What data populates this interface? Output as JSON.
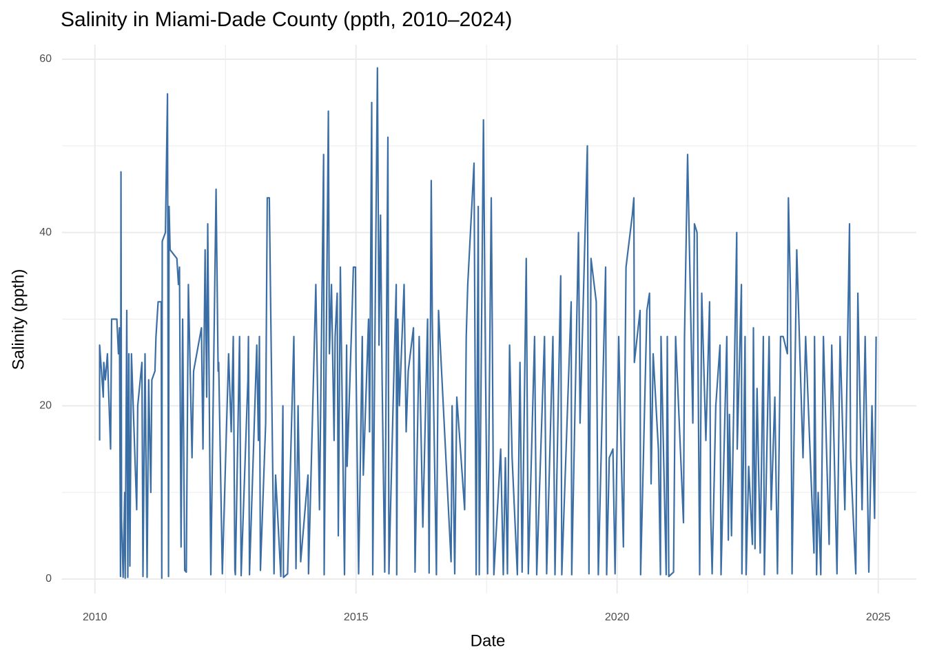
{
  "chart_data": {
    "type": "line",
    "title": "Salinity in Miami-Dade County (ppth, 2010–2024)",
    "x_label": "Date",
    "y_label": "Salinity (ppth)",
    "x": [
      2010.09,
      2010.09,
      2010.16,
      2010.17,
      2010.2,
      2010.24,
      2010.26,
      2010.3,
      2010.32,
      2010.42,
      2010.45,
      2010.47,
      2010.49,
      2010.5,
      2010.51,
      2010.54,
      2010.57,
      2010.58,
      2010.61,
      2010.63,
      2010.65,
      2010.67,
      2010.7,
      2010.8,
      2010.82,
      2010.9,
      2010.92,
      2010.96,
      2011.0,
      2011.03,
      2011.07,
      2011.09,
      2011.15,
      2011.17,
      2011.21,
      2011.27,
      2011.28,
      2011.29,
      2011.35,
      2011.39,
      2011.41,
      2011.42,
      2011.44,
      2011.57,
      2011.6,
      2011.62,
      2011.65,
      2011.68,
      2011.72,
      2011.75,
      2011.79,
      2011.86,
      2011.89,
      2012.04,
      2012.07,
      2012.11,
      2012.14,
      2012.16,
      2012.22,
      2012.32,
      2012.36,
      2012.37,
      2012.44,
      2012.56,
      2012.61,
      2012.65,
      2012.68,
      2012.69,
      2012.77,
      2012.8,
      2012.93,
      2012.94,
      2012.96,
      2013.1,
      2013.13,
      2013.15,
      2013.17,
      2013.27,
      2013.3,
      2013.34,
      2013.43,
      2013.46,
      2013.56,
      2013.6,
      2013.61,
      2013.69,
      2013.81,
      2013.85,
      2013.89,
      2013.94,
      2014.08,
      2014.09,
      2014.23,
      2014.3,
      2014.38,
      2014.39,
      2014.47,
      2014.49,
      2014.53,
      2014.58,
      2014.6,
      2014.64,
      2014.66,
      2014.7,
      2014.78,
      2014.82,
      2014.83,
      2014.92,
      2014.95,
      2014.99,
      2015.0,
      2015.05,
      2015.12,
      2015.14,
      2015.24,
      2015.26,
      2015.3,
      2015.32,
      2015.41,
      2015.44,
      2015.47,
      2015.5,
      2015.55,
      2015.61,
      2015.63,
      2015.73,
      2015.77,
      2015.78,
      2015.8,
      2015.83,
      2015.92,
      2015.96,
      2016.0,
      2016.1,
      2016.13,
      2016.21,
      2016.28,
      2016.37,
      2016.4,
      2016.44,
      2016.46,
      2016.54,
      2016.58,
      2016.82,
      2016.84,
      2016.89,
      2016.93,
      2017.08,
      2017.11,
      2017.14,
      2017.26,
      2017.3,
      2017.34,
      2017.36,
      2017.44,
      2017.48,
      2017.52,
      2017.59,
      2017.61,
      2017.64,
      2017.77,
      2017.82,
      2017.86,
      2017.9,
      2017.94,
      2017.99,
      2018.09,
      2018.14,
      2018.18,
      2018.26,
      2018.3,
      2018.42,
      2018.46,
      2018.61,
      2018.65,
      2018.77,
      2018.81,
      2018.92,
      2018.94,
      2019.12,
      2019.13,
      2019.26,
      2019.29,
      2019.43,
      2019.46,
      2019.5,
      2019.6,
      2019.64,
      2019.78,
      2019.8,
      2019.85,
      2019.92,
      2019.96,
      2020.03,
      2020.08,
      2020.12,
      2020.17,
      2020.29,
      2020.32,
      2020.33,
      2020.44,
      2020.45,
      2020.57,
      2020.62,
      2020.65,
      2020.69,
      2020.79,
      2020.83,
      2020.84,
      2020.94,
      2020.96,
      2020.99,
      2021.08,
      2021.12,
      2021.27,
      2021.29,
      2021.35,
      2021.45,
      2021.48,
      2021.53,
      2021.58,
      2021.62,
      2021.7,
      2021.77,
      2021.79,
      2021.82,
      2021.89,
      2021.97,
      2021.99,
      2022.1,
      2022.13,
      2022.15,
      2022.19,
      2022.29,
      2022.3,
      2022.38,
      2022.39,
      2022.45,
      2022.47,
      2022.52,
      2022.59,
      2022.61,
      2022.64,
      2022.68,
      2022.74,
      2022.8,
      2022.82,
      2022.91,
      2022.95,
      2023.02,
      2023.07,
      2023.13,
      2023.18,
      2023.26,
      2023.28,
      2023.32,
      2023.35,
      2023.44,
      2023.56,
      2023.61,
      2023.77,
      2023.78,
      2023.82,
      2023.85,
      2023.9,
      2023.95,
      2024.06,
      2024.11,
      2024.21,
      2024.27,
      2024.36,
      2024.45,
      2024.47,
      2024.57,
      2024.61,
      2024.69,
      2024.75,
      2024.82,
      2024.88,
      2024.93,
      2024.96
    ],
    "series": [
      {
        "name": "Salinity",
        "color": "#3b6ea5",
        "values": [
          16,
          27,
          21,
          25,
          23,
          26,
          22,
          15,
          30,
          30,
          26,
          29,
          0.3,
          47,
          7,
          0.2,
          10,
          0.1,
          31,
          0.2,
          26,
          1.5,
          26,
          8,
          20,
          25,
          0.3,
          26,
          0.2,
          23,
          10,
          23,
          24,
          28,
          32,
          32,
          0.1,
          39,
          40,
          56,
          0.3,
          43,
          38,
          37,
          34,
          36,
          3.7,
          30,
          1,
          0.8,
          34,
          14,
          24,
          29,
          15,
          38,
          21,
          41,
          0.5,
          45,
          24,
          25,
          0.6,
          26,
          17,
          28,
          1,
          0.5,
          28,
          0.4,
          23,
          28,
          0.5,
          27,
          16,
          28,
          1,
          18,
          44,
          44,
          0.6,
          12,
          0.3,
          20,
          0.2,
          0.6,
          28,
          1.2,
          20,
          2,
          12,
          0.6,
          34,
          8,
          49,
          0.5,
          54,
          26,
          34,
          16,
          28,
          33,
          5,
          36,
          0.5,
          27,
          13,
          30,
          36,
          36,
          25,
          0.6,
          28,
          12,
          30,
          17,
          55,
          0.5,
          59,
          27,
          42,
          23,
          0.8,
          51,
          0.6,
          25,
          34,
          0.5,
          30,
          20,
          34,
          17,
          24,
          29,
          0.8,
          28,
          6,
          30,
          0.7,
          46,
          30,
          0.5,
          31,
          2,
          20,
          0.6,
          21,
          8,
          28,
          34,
          48,
          0.5,
          43,
          0.5,
          53,
          24,
          0.6,
          44,
          29,
          0.5,
          15,
          0.5,
          14,
          0.6,
          27,
          14,
          0.5,
          25,
          0.8,
          37,
          0.6,
          28,
          0.5,
          28,
          0.6,
          28,
          0.5,
          35,
          0.5,
          32,
          0.5,
          40,
          18,
          50,
          0.6,
          37,
          32,
          0.5,
          36,
          0.5,
          14,
          15,
          0.6,
          28,
          14,
          3.7,
          36,
          42,
          44,
          25,
          31,
          0.5,
          31,
          33,
          11,
          26,
          15,
          0.5,
          28,
          0.5,
          28,
          0.3,
          0.8,
          28,
          6.5,
          28,
          49,
          18,
          41,
          40,
          0.5,
          33,
          16,
          32,
          8,
          0.6,
          20,
          27,
          0.5,
          28,
          4.5,
          19,
          5,
          40,
          15,
          34,
          0.6,
          28,
          0.5,
          13,
          4,
          29,
          3.5,
          22,
          3,
          28,
          0.5,
          28,
          8,
          21,
          0.6,
          28,
          28,
          26,
          44,
          33,
          0.6,
          38,
          14,
          28,
          3,
          28,
          0.5,
          10,
          0.5,
          28,
          4,
          27,
          0.6,
          28,
          8,
          41,
          14,
          0.6,
          33,
          8,
          28,
          0.8,
          20,
          7,
          28
        ]
      }
    ],
    "xlim": [
      2009.37,
      2025.73
    ],
    "xticks": [
      2010,
      2015,
      2020,
      2025
    ],
    "ylim": [
      -1.67,
      61.67
    ],
    "yticks": [
      0,
      20,
      40,
      60
    ],
    "x_minor_grid": [
      2012.5,
      2017.5,
      2022.5
    ],
    "y_minor_grid": [
      10,
      30,
      50
    ],
    "grid": true
  }
}
